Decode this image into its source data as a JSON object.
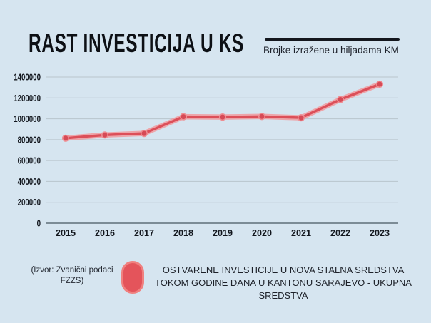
{
  "page": {
    "background_color": "#d6e5f0"
  },
  "chart_data": {
    "type": "line",
    "title": "RAST INVESTICIJA U KS",
    "subtitle": "Brojke izražene u hiljadama KM",
    "categories": [
      "2015",
      "2016",
      "2017",
      "2018",
      "2019",
      "2020",
      "2021",
      "2022",
      "2023"
    ],
    "series": [
      {
        "name": "OSTVARENE INVESTICIJE U NOVA STALNA SREDSTVA TOKOM GODINE DANA U KANTONU SARAJEVO - UKUPNA SREDSTVA",
        "values": [
          814000,
          845000,
          860000,
          1020000,
          1017000,
          1022000,
          1010000,
          1185000,
          1332000
        ]
      }
    ],
    "ylim": [
      0,
      1400000
    ],
    "ytick_step": 200000,
    "ytick_labels": [
      "0",
      "200000",
      "400000",
      "600000",
      "800000",
      "1000000",
      "1200000",
      "1400000"
    ],
    "grid": true,
    "legend_position": "bottom",
    "line_color": "#dc4f59",
    "line_halo_color": "#f19a9e",
    "marker_color": "#d64a56",
    "marker_ring_color": "#ee8d92",
    "grid_color": "#b9c5cd",
    "axis_color": "#5f6e79",
    "tick_label_color": "#12161d"
  },
  "footer": {
    "source_note": "(Izvor: Zvanični podaci FZZS)",
    "legend_marker_color": "#e4545b"
  }
}
